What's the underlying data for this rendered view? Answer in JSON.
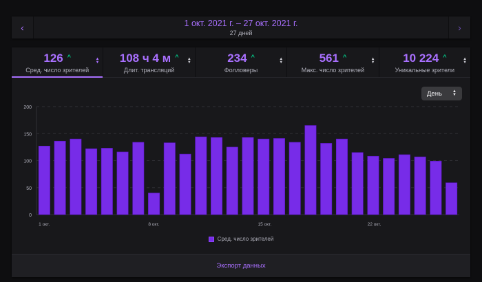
{
  "date_nav": {
    "prev_icon": "chevron-left-icon",
    "next_icon": "chevron-right-icon",
    "range": "1 окт. 2021 г. – 27 окт. 2021 г.",
    "days": "27 дней"
  },
  "stats": [
    {
      "value": "126",
      "label": "Сред. число зрителей",
      "trend": "up",
      "active": true
    },
    {
      "value": "108 ч 4 м",
      "label": "Длит. трансляций",
      "trend": "up",
      "active": false
    },
    {
      "value": "234",
      "label": "Фолловеры",
      "trend": "up",
      "active": false
    },
    {
      "value": "561",
      "label": "Макс. число зрителей",
      "trend": "up",
      "active": false
    },
    {
      "value": "10 224",
      "label": "Уникальные зрители",
      "trend": "up",
      "active": false
    }
  ],
  "trend_glyph": "^",
  "granularity": {
    "selected": "День"
  },
  "colors": {
    "accent": "#a970ff",
    "bar": "#772ce8",
    "trend_up": "#00d48e",
    "background": "#18181b"
  },
  "chart_data": {
    "type": "bar",
    "title": "",
    "xlabel": "",
    "ylabel": "",
    "ylim": [
      0,
      200
    ],
    "yticks": [
      0,
      50,
      100,
      150,
      200
    ],
    "grid": true,
    "legend": "bottom-center",
    "categories": [
      "1 окт.",
      "2 окт.",
      "3 окт.",
      "4 окт.",
      "5 окт.",
      "6 окт.",
      "7 окт.",
      "8 окт.",
      "9 окт.",
      "10 окт.",
      "11 окт.",
      "12 окт.",
      "13 окт.",
      "14 окт.",
      "15 окт.",
      "16 окт.",
      "17 окт.",
      "18 окт.",
      "19 окт.",
      "20 окт.",
      "21 окт.",
      "22 окт.",
      "23 окт.",
      "24 окт.",
      "25 окт.",
      "26 окт.",
      "27 окт."
    ],
    "xtick_labels": [
      {
        "index": 0,
        "label": "1 окт."
      },
      {
        "index": 7,
        "label": "8 окт."
      },
      {
        "index": 14,
        "label": "15 окт."
      },
      {
        "index": 21,
        "label": "22 окт."
      }
    ],
    "series": [
      {
        "name": "Сред. число зрителей",
        "values": [
          127,
          136,
          140,
          122,
          123,
          116,
          134,
          40,
          133,
          112,
          144,
          143,
          125,
          143,
          140,
          141,
          134,
          165,
          132,
          140,
          115,
          108,
          104,
          111,
          107,
          99,
          59
        ]
      }
    ]
  },
  "footer": {
    "export_label": "Экспорт данных"
  }
}
